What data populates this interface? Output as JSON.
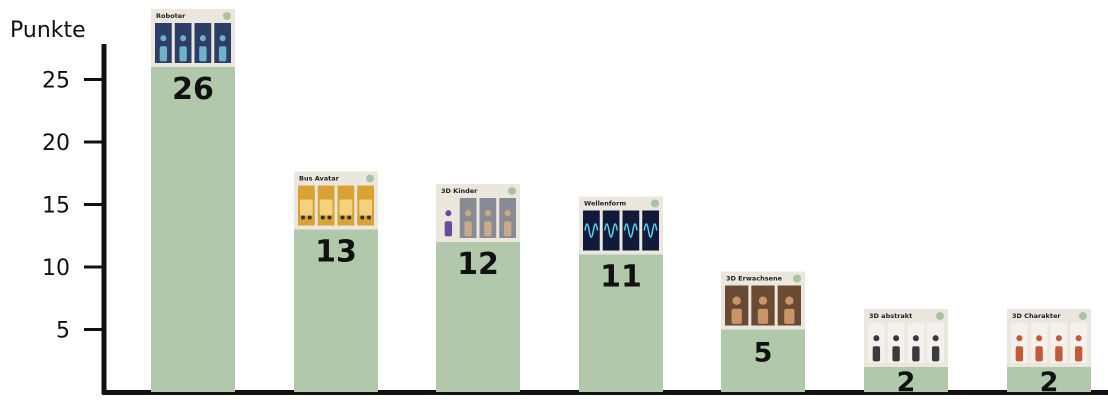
{
  "chart_data": {
    "type": "bar",
    "ylabel": "Punkte",
    "ylim": [
      0,
      26
    ],
    "yticks": [
      5,
      10,
      15,
      20,
      25
    ],
    "categories": [
      "Roboter",
      "Bus Avatar",
      "3D Kinder",
      "Wellenform",
      "3D Erwachsene",
      "3D abstrakt",
      "3D Charakter"
    ],
    "values": [
      26,
      13,
      12,
      11,
      5,
      2,
      2
    ],
    "data_labels": [
      "26",
      "13",
      "12",
      "11",
      "5",
      "2",
      "2"
    ],
    "colors": {
      "bar": "#b2c8ab",
      "card": "#ece7de",
      "axis": "#111111",
      "badge": "#a9c3a3"
    },
    "thumbnail_icons": [
      [
        "robot-icon",
        "robot-icon",
        "robot-icon",
        "robot-icon"
      ],
      [
        "bus-icon",
        "bus-icon",
        "bus-icon",
        "bus-icon"
      ],
      [
        "child-figure-icon",
        "child-portrait-icon",
        "child-portrait-icon",
        "child-portrait-icon"
      ],
      [
        "waveform-icon",
        "waveform-icon",
        "waveform-icon",
        "waveform-icon"
      ],
      [
        "adult-portrait-icon",
        "adult-portrait-icon",
        "adult-portrait-icon"
      ],
      [
        "abstract-figure-icon",
        "abstract-figure-icon",
        "abstract-figure-icon",
        "abstract-figure-icon"
      ],
      [
        "character-icon",
        "character-icon",
        "character-icon",
        "character-icon"
      ]
    ]
  }
}
